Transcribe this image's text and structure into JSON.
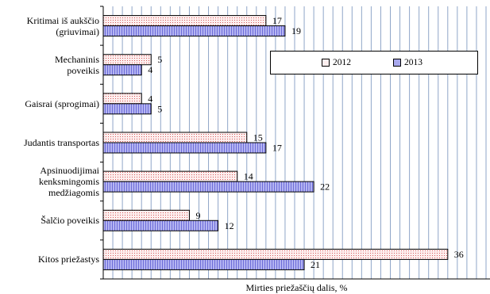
{
  "chart_data": {
    "type": "bar",
    "orientation": "horizontal",
    "categories": [
      "Kritimai iš aukščio\n(griuvimai)",
      "Mechaninis\npoveikis",
      "Gaisrai (sprogimai)",
      "Judantis transportas",
      "Apsinuodijimai\nkenksmingomis\nmedžiagomis",
      "Šalčio poveikis",
      "Kitos priežastys"
    ],
    "series": [
      {
        "name": "2012",
        "values": [
          17,
          5,
          4,
          15,
          14,
          9,
          36
        ],
        "color": "#fde8e8"
      },
      {
        "name": "2013",
        "values": [
          19,
          4,
          5,
          17,
          22,
          12,
          21
        ],
        "color": "#a9a9ee"
      }
    ],
    "xlabel": "Mirties priežaščių dalis, %",
    "xlim": [
      0,
      40
    ],
    "grid": true,
    "legend_position": "top-right"
  }
}
